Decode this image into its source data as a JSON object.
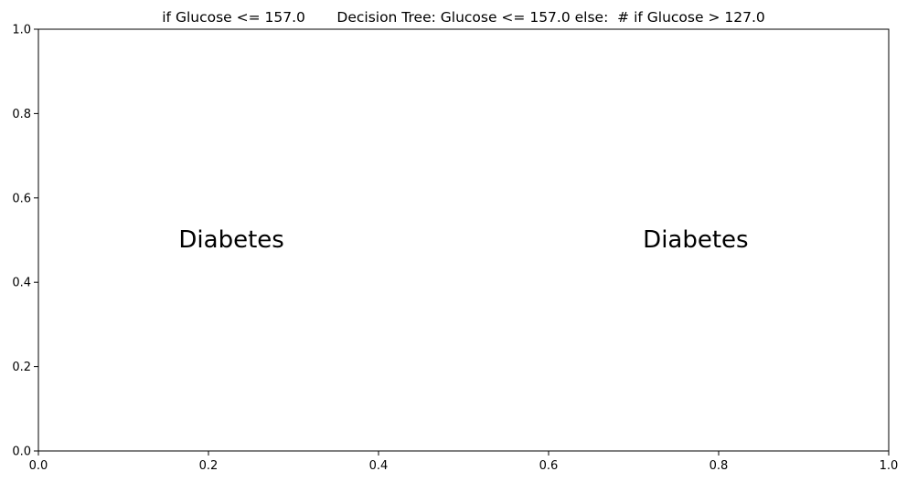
{
  "chart_data": {
    "type": "scatter",
    "title": "if Glucose <= 157.0       Decision Tree: Glucose <= 157.0 else:  # if Glucose > 127.0",
    "xlabel": "",
    "ylabel": "",
    "xlim": [
      0.0,
      1.0
    ],
    "ylim": [
      0.0,
      1.0
    ],
    "xticks": [
      0.0,
      0.2,
      0.4,
      0.6,
      0.8,
      1.0
    ],
    "xtick_labels": [
      "0.0",
      "0.2",
      "0.4",
      "0.6",
      "0.8",
      "1.0"
    ],
    "yticks": [
      0.0,
      0.2,
      0.4,
      0.6,
      0.8,
      1.0
    ],
    "ytick_labels": [
      "0.0",
      "0.2",
      "0.4",
      "0.6",
      "0.8",
      "1.0"
    ],
    "grid": false,
    "series": [],
    "annotations": [
      {
        "text": "Diabetes",
        "x": 0.227,
        "y": 0.5
      },
      {
        "text": "Diabetes",
        "x": 0.773,
        "y": 0.5
      }
    ]
  }
}
